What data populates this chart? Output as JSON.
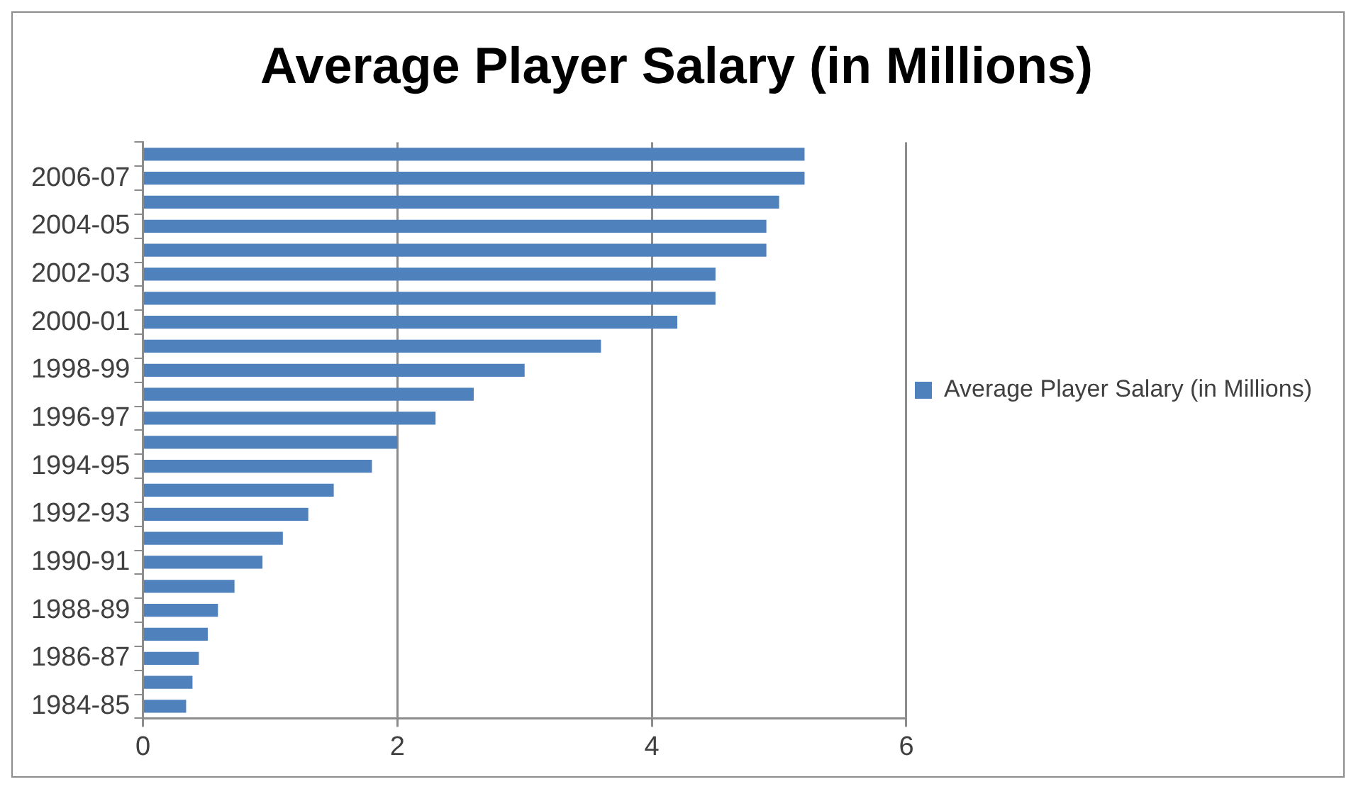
{
  "chart_data": {
    "type": "bar",
    "orientation": "horizontal",
    "title": "Average Player Salary (in Millions)",
    "categories": [
      null,
      "2006-07",
      null,
      "2004-05",
      null,
      "2002-03",
      null,
      "2000-01",
      null,
      "1998-99",
      null,
      "1996-97",
      null,
      "1994-95",
      null,
      "1992-93",
      null,
      "1990-91",
      null,
      "1988-89",
      null,
      "1986-87",
      null,
      "1984-85"
    ],
    "series": [
      {
        "name": "Average Player Salary (in Millions)",
        "color": "#4f81bd",
        "values": [
          5.2,
          5.2,
          5.0,
          4.9,
          4.9,
          4.5,
          4.5,
          4.2,
          3.6,
          3.0,
          2.6,
          2.3,
          2.0,
          1.8,
          1.5,
          1.3,
          1.1,
          0.94,
          0.72,
          0.59,
          0.51,
          0.44,
          0.39,
          0.34
        ]
      }
    ],
    "xlim": [
      0,
      6
    ],
    "xticks": [
      0,
      2,
      4,
      6
    ],
    "grid": "x",
    "legend": "right"
  }
}
